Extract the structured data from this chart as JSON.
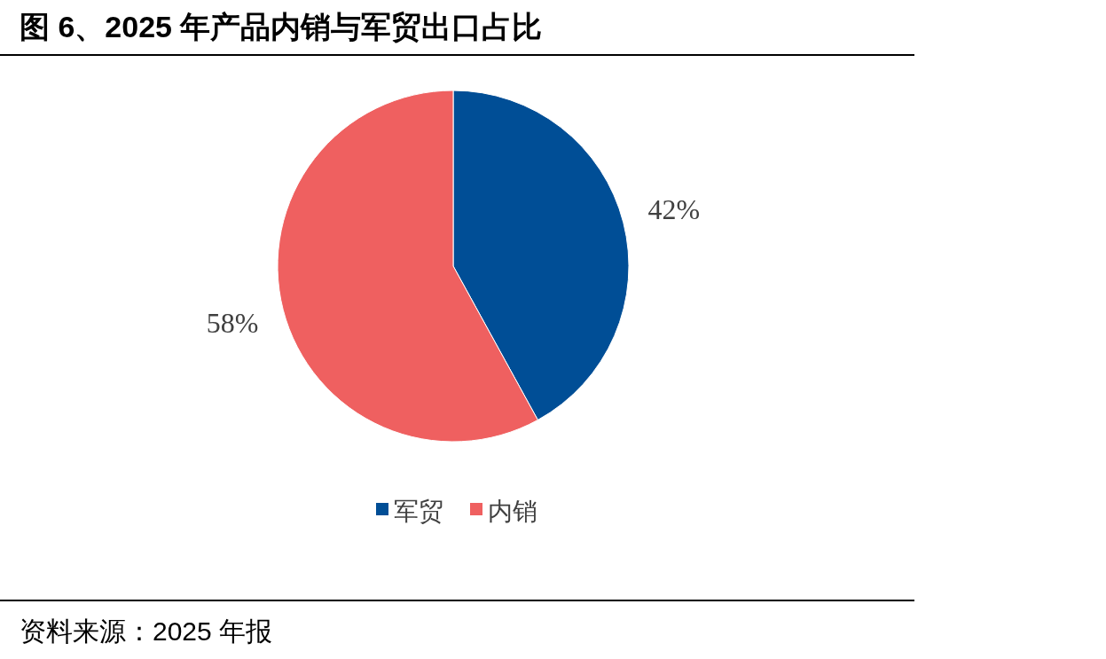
{
  "chart_data": {
    "type": "pie",
    "title": "图 6、2025 年产品内销与军贸出口占比",
    "categories": [
      "军贸",
      "内销"
    ],
    "values": [
      42,
      58
    ],
    "colors": [
      "#004e96",
      "#ef6060"
    ],
    "value_labels": [
      "42%",
      "58%"
    ],
    "legend": "bottom",
    "annotations": [
      "资料来源：2025 年报"
    ]
  }
}
